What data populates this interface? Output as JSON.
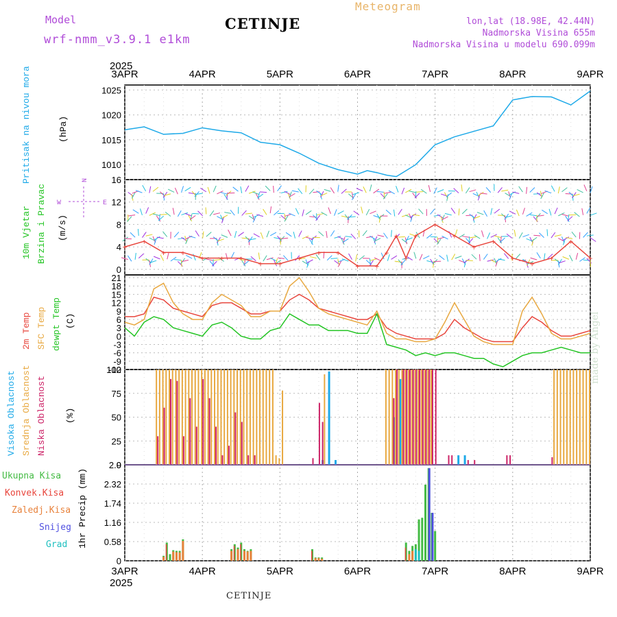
{
  "header": {
    "model_label": "Model",
    "model_name": "wrf-nmm_v3.9.1 e1km",
    "station": "CETINJE",
    "meteogram_label": "Meteogram",
    "coords": "lon,lat (18.98E, 42.44N)",
    "altitude": "Nadmorska Visina 655m",
    "model_altitude": "Nadmorska Visina u modelu 690.099m"
  },
  "footer": {
    "station": "CETINJE",
    "watermark": "made by Angel"
  },
  "colors": {
    "pressure": "#1da9e8",
    "temp2m": "#e8453c",
    "sfc": "#e8a840",
    "dewpt": "#22c422",
    "high_cloud": "#1da9e8",
    "mid_cloud": "#e8a840",
    "low_cloud": "#cc2266",
    "total_precip": "#44bb44",
    "conv_precip": "#e8453c",
    "frozen": "#e8823c",
    "snow": "#5050e0",
    "hail": "#20c0c0",
    "wind_speed": "#e8453c",
    "label_purple": "#b04cd8"
  },
  "axes": {
    "x_ticks": [
      "3APR",
      "4APR",
      "5APR",
      "6APR",
      "7APR",
      "8APR",
      "9APR"
    ],
    "year": "2025",
    "pressure_ticks": [
      "1025",
      "1020",
      "1015",
      "1010"
    ],
    "wind_ticks": [
      "16",
      "12",
      "8",
      "4",
      "0"
    ],
    "temp_ticks": [
      "21",
      "18",
      "15",
      "12",
      "9",
      "6",
      "3",
      "0",
      "-3",
      "-6",
      "-9",
      "-12"
    ],
    "cloud_ticks": [
      "100",
      "75",
      "50",
      "25",
      "0"
    ],
    "precip_ticks": [
      "2.9",
      "2.32",
      "1.74",
      "1.16",
      "0.58",
      "0"
    ]
  },
  "panel_labels": {
    "pressure": "Pritisak na nivou mora",
    "pressure_unit": "(hPa)",
    "wind_1": "10m Vjetar",
    "wind_2": "Brzina i Pravac",
    "wind_unit": "(m/s)",
    "compass_n": "N",
    "compass_w": "W",
    "compass_e": "E",
    "temp_2m": "2m Temp",
    "temp_sfc": "SFC Temp",
    "temp_dew": "dewpt Temp",
    "temp_unit": "(C)",
    "cloud_high": "Visoka Oblacnost",
    "cloud_mid": "Srednja Oblacnost",
    "cloud_low": "Niska Oblacnost",
    "cloud_unit": "(%)",
    "precip_unit": "1hr Precip (mm)",
    "precip_total": "Ukupna Kisa",
    "precip_conv": "Konvek.Kisa",
    "precip_frozen": "Zaledj.Kisa",
    "precip_snow": "Snijeg",
    "precip_hail": "Grad"
  },
  "chart_data": [
    {
      "type": "line",
      "panel": "pressure",
      "ylim": [
        1007,
        1026
      ],
      "x_hours": [
        0,
        6,
        12,
        18,
        24,
        30,
        36,
        42,
        48,
        54,
        60,
        66,
        72,
        75,
        78,
        81,
        84,
        90,
        96,
        102,
        108,
        114,
        120,
        126,
        132,
        138,
        144
      ],
      "series": [
        {
          "values": [
            1017.0,
            1017.6,
            1016.1,
            1016.3,
            1017.4,
            1016.8,
            1016.4,
            1014.5,
            1014.0,
            1012.3,
            1010.3,
            1009.0,
            1008.1,
            1008.8,
            1008.4,
            1007.9,
            1007.6,
            1010.0,
            1014.0,
            1015.6,
            1016.7,
            1017.8,
            1023.0,
            1023.7,
            1023.6,
            1022.0,
            1024.8
          ]
        }
      ]
    },
    {
      "type": "line",
      "panel": "wind",
      "ylim": [
        -1,
        16
      ],
      "x_hours": [
        0,
        6,
        12,
        18,
        24,
        30,
        36,
        42,
        48,
        54,
        60,
        66,
        72,
        78,
        81,
        84,
        87,
        90,
        96,
        102,
        108,
        114,
        120,
        126,
        132,
        138,
        144
      ],
      "series": [
        {
          "values": [
            4,
            5,
            3,
            3,
            2,
            2,
            2,
            1,
            1,
            2,
            3,
            3,
            0.6,
            0.6,
            3,
            6,
            2,
            6,
            8,
            6,
            4,
            5,
            2,
            1,
            2,
            5,
            2
          ]
        }
      ]
    },
    {
      "type": "line",
      "panel": "temperature",
      "ylim": [
        -12,
        22
      ],
      "x_hours": [
        0,
        3,
        6,
        9,
        12,
        15,
        18,
        21,
        24,
        27,
        30,
        33,
        36,
        39,
        42,
        45,
        48,
        51,
        54,
        57,
        60,
        63,
        66,
        69,
        72,
        75,
        78,
        81,
        84,
        87,
        90,
        93,
        96,
        99,
        102,
        105,
        108,
        111,
        114,
        117,
        120,
        123,
        126,
        129,
        132,
        135,
        138,
        141,
        144
      ],
      "series": [
        {
          "values": [
            7,
            7,
            8,
            14,
            13,
            10,
            9,
            8,
            7,
            11,
            12,
            12,
            10,
            8,
            8,
            9,
            9,
            13,
            15,
            13,
            10,
            9,
            8,
            7,
            6,
            6,
            8,
            3,
            1,
            0,
            -1,
            -1,
            -1,
            1,
            6,
            3,
            1,
            -1,
            -2,
            -2,
            -2,
            3,
            7,
            5,
            2,
            0,
            0,
            1,
            2
          ]
        },
        {
          "values": [
            5,
            4,
            6,
            17,
            19,
            12,
            8,
            6,
            6,
            12,
            15,
            13,
            11,
            7,
            7,
            9,
            9,
            18,
            21,
            16,
            10,
            8,
            7,
            6,
            5,
            4,
            9,
            1,
            -1,
            -1,
            -2,
            -2,
            -1,
            5,
            12,
            6,
            0,
            -2,
            -3,
            -3,
            -3,
            9,
            14,
            8,
            1,
            -1,
            -1,
            0,
            1
          ]
        },
        {
          "values": [
            3,
            0,
            5,
            7,
            6,
            3,
            2,
            1,
            0,
            4,
            5,
            3,
            0,
            -1,
            -1,
            2,
            3,
            8,
            6,
            4,
            4,
            2,
            2,
            2,
            1,
            1,
            8,
            -3,
            -4,
            -5,
            -7,
            -6,
            -7,
            -6,
            -6,
            -7,
            -8,
            -8,
            -10,
            -11,
            -9,
            -7,
            -6,
            -6,
            -5,
            -4,
            -5,
            -6,
            -6
          ]
        }
      ]
    },
    {
      "type": "bar",
      "panel": "cloud",
      "ylim": [
        0,
        100
      ],
      "series": [
        {
          "values": [
            [
              61,
              5
            ],
            [
              63,
              98
            ],
            [
              65,
              5
            ],
            [
              83,
              50
            ],
            [
              85,
              90
            ],
            [
              103,
              10
            ],
            [
              105,
              10
            ]
          ]
        },
        {
          "values": [
            [
              10,
              100
            ],
            [
              11,
              100
            ],
            [
              12,
              100
            ],
            [
              13,
              100
            ],
            [
              14,
              100
            ],
            [
              15,
              100
            ],
            [
              16,
              100
            ],
            [
              17,
              100
            ],
            [
              18,
              100
            ],
            [
              19,
              100
            ],
            [
              20,
              100
            ],
            [
              21,
              100
            ],
            [
              22,
              100
            ],
            [
              23,
              100
            ],
            [
              24,
              100
            ],
            [
              25,
              100
            ],
            [
              26,
              100
            ],
            [
              27,
              100
            ],
            [
              28,
              100
            ],
            [
              29,
              100
            ],
            [
              30,
              100
            ],
            [
              31,
              100
            ],
            [
              32,
              100
            ],
            [
              33,
              100
            ],
            [
              34,
              100
            ],
            [
              35,
              100
            ],
            [
              36,
              100
            ],
            [
              37,
              100
            ],
            [
              38,
              100
            ],
            [
              39,
              100
            ],
            [
              40,
              100
            ],
            [
              41,
              100
            ],
            [
              42,
              100
            ],
            [
              43,
              100
            ],
            [
              44,
              100
            ],
            [
              45,
              100
            ],
            [
              46,
              100
            ],
            [
              47,
              10
            ],
            [
              48,
              7
            ],
            [
              49,
              78
            ],
            [
              62,
              95
            ],
            [
              81,
              100
            ],
            [
              82,
              100
            ],
            [
              83,
              100
            ],
            [
              84,
              100
            ],
            [
              85,
              100
            ],
            [
              86,
              100
            ],
            [
              87,
              100
            ],
            [
              88,
              100
            ],
            [
              89,
              100
            ],
            [
              90,
              100
            ],
            [
              91,
              100
            ],
            [
              92,
              100
            ],
            [
              93,
              100
            ],
            [
              94,
              100
            ],
            [
              95,
              100
            ],
            [
              133,
              100
            ],
            [
              134,
              100
            ],
            [
              135,
              100
            ],
            [
              136,
              100
            ],
            [
              137,
              100
            ],
            [
              138,
              100
            ],
            [
              139,
              100
            ],
            [
              140,
              100
            ],
            [
              141,
              100
            ],
            [
              142,
              100
            ],
            [
              143,
              100
            ],
            [
              144,
              100
            ]
          ]
        },
        {
          "values": [
            [
              10,
              30
            ],
            [
              12,
              60
            ],
            [
              14,
              90
            ],
            [
              16,
              88
            ],
            [
              18,
              30
            ],
            [
              20,
              70
            ],
            [
              22,
              40
            ],
            [
              24,
              90
            ],
            [
              26,
              70
            ],
            [
              28,
              40
            ],
            [
              30,
              10
            ],
            [
              32,
              20
            ],
            [
              34,
              55
            ],
            [
              36,
              45
            ],
            [
              38,
              10
            ],
            [
              40,
              10
            ],
            [
              58,
              7
            ],
            [
              60,
              65
            ],
            [
              61,
              45
            ],
            [
              83,
              70
            ],
            [
              84,
              100
            ],
            [
              86,
              100
            ],
            [
              87,
              100
            ],
            [
              88,
              100
            ],
            [
              89,
              100
            ],
            [
              90,
              100
            ],
            [
              91,
              100
            ],
            [
              92,
              100
            ],
            [
              93,
              100
            ],
            [
              94,
              100
            ],
            [
              95,
              100
            ],
            [
              96,
              100
            ],
            [
              100,
              10
            ],
            [
              101,
              10
            ],
            [
              106,
              5
            ],
            [
              108,
              5
            ],
            [
              118,
              10
            ],
            [
              119,
              10
            ],
            [
              132,
              8
            ]
          ]
        }
      ]
    },
    {
      "type": "bar",
      "panel": "precip",
      "ylim": [
        0,
        2.9
      ],
      "series": [
        {
          "values": [
            [
              12,
              0.15
            ],
            [
              13,
              0.55
            ],
            [
              14,
              0.2
            ],
            [
              15,
              0.32
            ],
            [
              16,
              0.3
            ],
            [
              17,
              0.3
            ],
            [
              18,
              0.65
            ],
            [
              33,
              0.35
            ],
            [
              34,
              0.5
            ],
            [
              35,
              0.4
            ],
            [
              36,
              0.55
            ],
            [
              37,
              0.35
            ],
            [
              38,
              0.3
            ],
            [
              39,
              0.35
            ],
            [
              58,
              0.35
            ],
            [
              59,
              0.1
            ],
            [
              60,
              0.1
            ],
            [
              61,
              0.1
            ],
            [
              87,
              0.55
            ],
            [
              88,
              0.3
            ],
            [
              89,
              0.45
            ],
            [
              90,
              0.5
            ],
            [
              91,
              1.25
            ],
            [
              92,
              1.3
            ],
            [
              93,
              2.3
            ],
            [
              94,
              2.8
            ],
            [
              95,
              1.45
            ],
            [
              96,
              0.9
            ]
          ]
        },
        {
          "values": [
            [
              13,
              0.5
            ],
            [
              34,
              0.45
            ],
            [
              36,
              0.5
            ],
            [
              58,
              0.3
            ],
            [
              87,
              0.4
            ]
          ]
        },
        {
          "values": [
            [
              12,
              0.12
            ],
            [
              15,
              0.28
            ],
            [
              16,
              0.26
            ],
            [
              17,
              0.25
            ],
            [
              18,
              0.6
            ],
            [
              33,
              0.3
            ],
            [
              35,
              0.35
            ],
            [
              37,
              0.3
            ],
            [
              38,
              0.28
            ],
            [
              39,
              0.3
            ],
            [
              59,
              0.08
            ],
            [
              60,
              0.08
            ],
            [
              61,
              0.06
            ],
            [
              88,
              0.2
            ],
            [
              89,
              0.3
            ]
          ]
        },
        {
          "values": [
            [
              94,
              2.8
            ],
            [
              95,
              1.45
            ]
          ]
        },
        {
          "values": [
            [
              90,
              0.35
            ],
            [
              91,
              0.3
            ]
          ]
        }
      ]
    }
  ]
}
